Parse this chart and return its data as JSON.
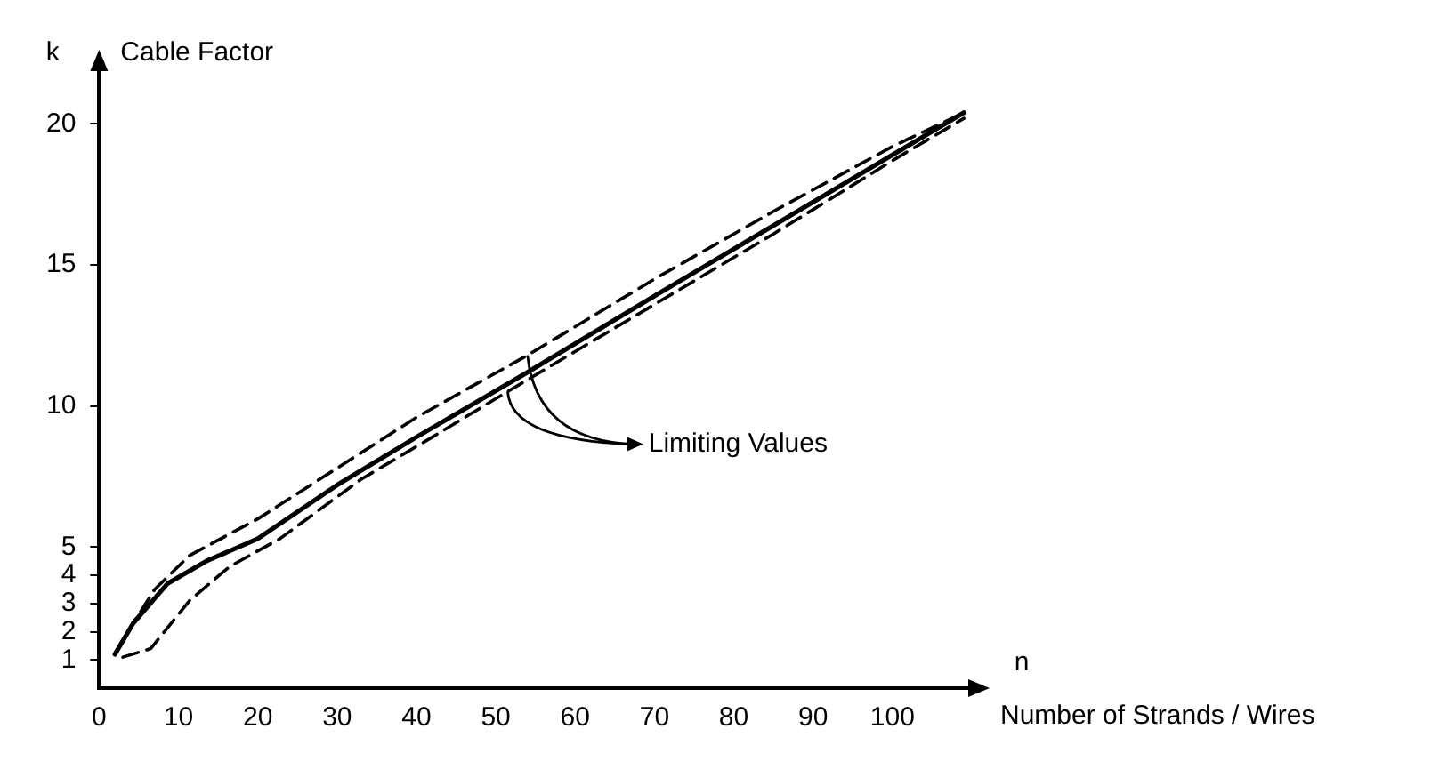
{
  "chart_data": {
    "type": "line",
    "xlabel": "Number of Strands / Wires",
    "ylabel": "Cable Factor",
    "annotations": [
      "k",
      "n",
      {
        "text": "Limiting Values",
        "x": 54,
        "y": 11.8
      }
    ],
    "series": [
      {
        "color": "#000000",
        "line_style": "solid",
        "x": [
          2,
          4.3,
          8.6,
          13.5,
          20,
          30,
          40,
          54,
          70,
          85,
          100,
          109
        ],
        "values": [
          1.2,
          2.3,
          3.7,
          4.5,
          5.3,
          7.2,
          8.9,
          11.2,
          13.9,
          16.4,
          18.9,
          20.4
        ]
      },
      {
        "color": "#000000",
        "line_style": "dashed",
        "x": [
          2,
          3.2,
          7,
          11.4,
          20,
          30,
          40,
          54,
          70,
          85,
          100,
          109
        ],
        "values": [
          1.2,
          1.8,
          3.5,
          4.7,
          6.0,
          7.8,
          9.6,
          11.8,
          14.5,
          16.9,
          19.2,
          20.4
        ]
      },
      {
        "color": "#000000",
        "line_style": "dashed",
        "x": [
          3,
          6.5,
          11.4,
          16.4,
          22.8,
          33,
          42,
          52,
          70,
          85,
          100,
          109
        ],
        "values": [
          1.1,
          1.4,
          3.1,
          4.3,
          5.3,
          7.4,
          8.9,
          10.6,
          13.6,
          16.1,
          18.7,
          20.2
        ]
      }
    ],
    "xlim": [
      0,
      110
    ],
    "xticks": [
      0,
      10,
      20,
      30,
      40,
      50,
      60,
      70,
      80,
      90,
      100
    ],
    "ylim": [
      0,
      22
    ],
    "yticks": [
      1,
      2,
      3,
      4,
      5,
      10,
      15,
      20
    ],
    "grid": false,
    "legend": false,
    "marker": "none"
  }
}
